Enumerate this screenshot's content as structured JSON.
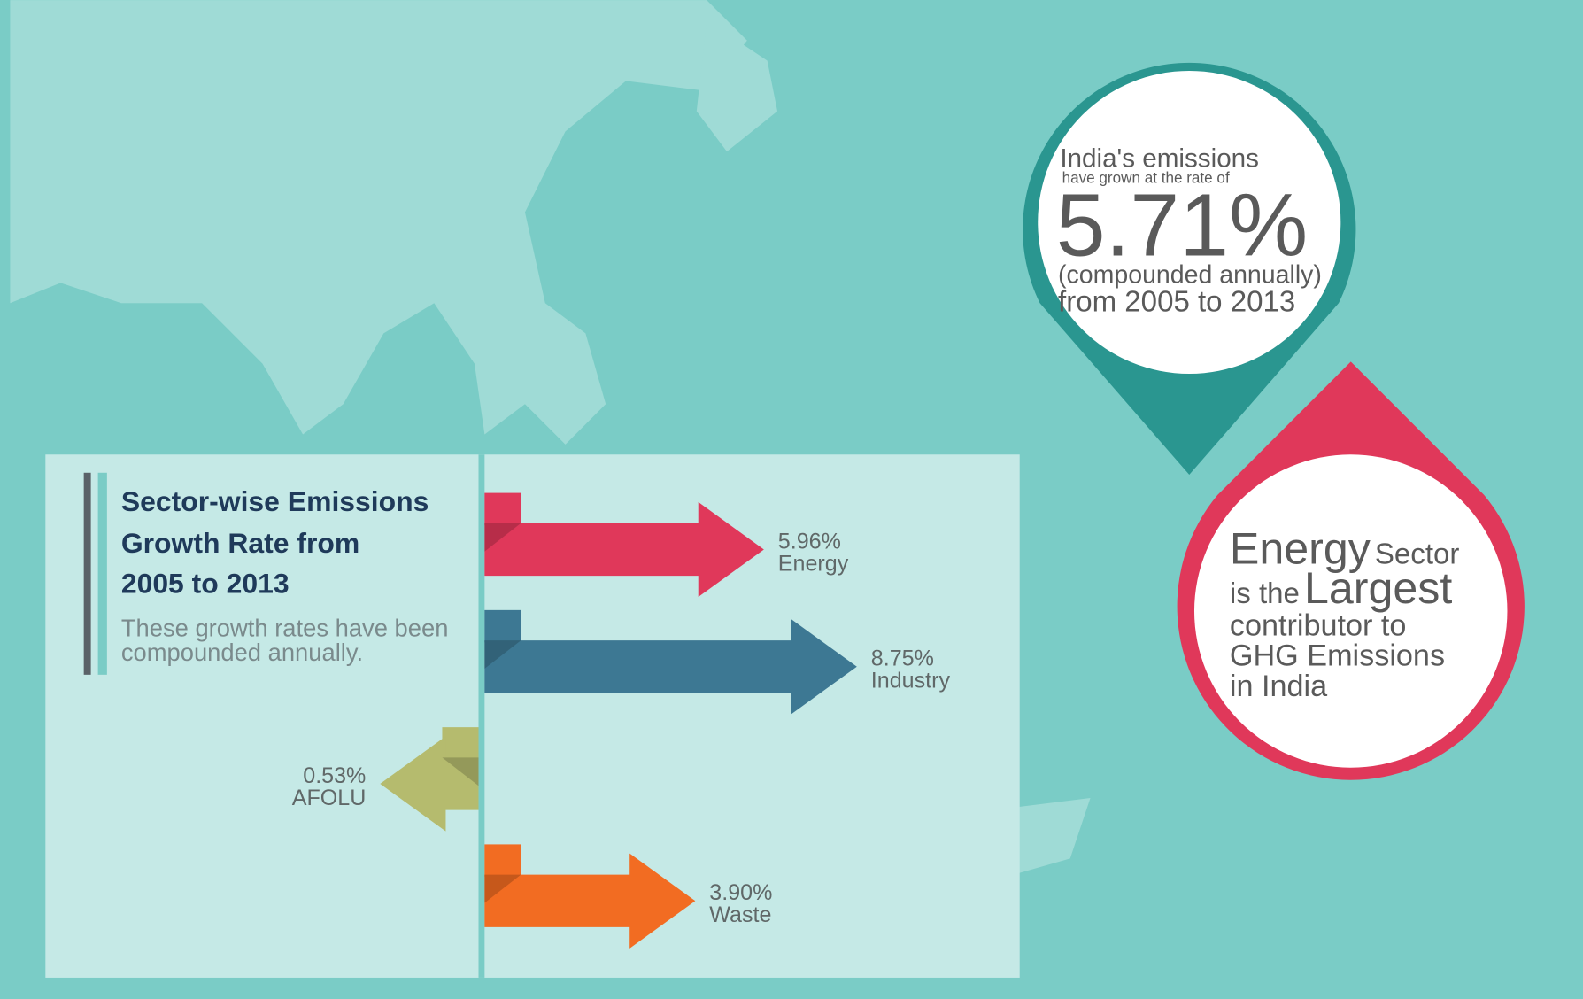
{
  "chart_data": {
    "type": "arrow",
    "title": [
      "Sector-wise Emissions",
      "Growth Rate from",
      "2005 to 2013"
    ],
    "subtitle": [
      "These growth rates have been",
      "compounded annually."
    ],
    "categories": [
      "Energy",
      "Industry",
      "AFOLU",
      "Waste"
    ],
    "values": [
      5.96,
      8.75,
      -0.53,
      3.9
    ],
    "value_labels": [
      "5.96%",
      "8.75%",
      "0.53%",
      "3.90%"
    ],
    "colors": [
      "#e0385a",
      "#3d7893",
      "#b5bb6e",
      "#f26c22"
    ]
  },
  "callouts": {
    "growth": [
      "India's emissions",
      "have grown at the rate of",
      "5.71%",
      "(compounded annually)",
      "from 2005 to 2013"
    ],
    "sector": [
      "Energy",
      "Sector",
      "is the",
      "Largest",
      "contributor to",
      "GHG Emissions",
      "in India"
    ]
  }
}
